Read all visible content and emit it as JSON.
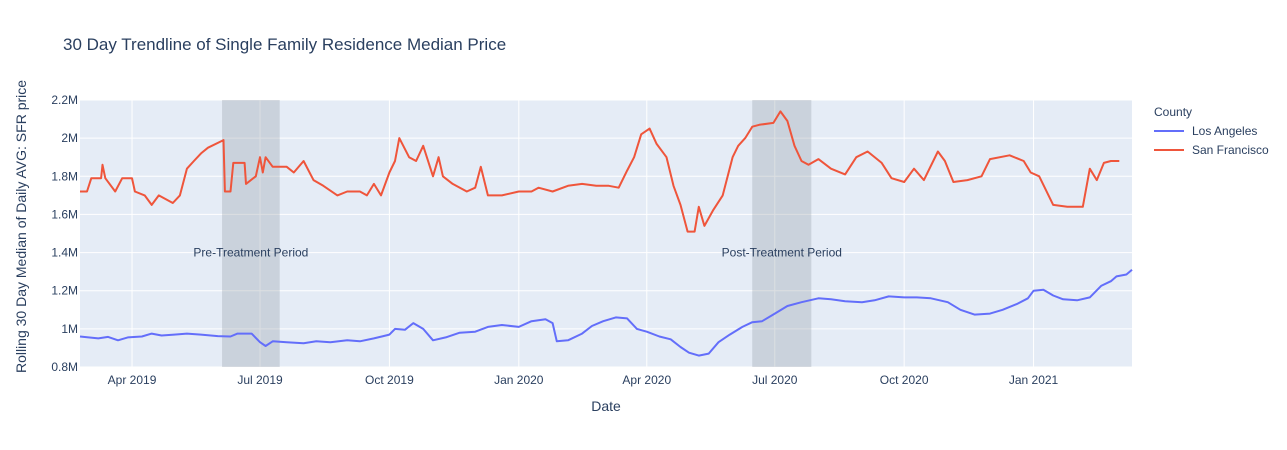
{
  "chart_data": {
    "type": "line",
    "title": "30 Day Trendline of Single Family Residence Median Price",
    "xlabel": "Date",
    "ylabel": "Rolling 30 Day Median of Daily AVG: SFR price",
    "x_range": [
      "2019-02-23",
      "2021-03-12"
    ],
    "ylim": [
      800000,
      2200000
    ],
    "x_ticks": [
      {
        "date": "2019-04-01",
        "label": "Apr 2019"
      },
      {
        "date": "2019-07-01",
        "label": "Jul 2019"
      },
      {
        "date": "2019-10-01",
        "label": "Oct 2019"
      },
      {
        "date": "2020-01-01",
        "label": "Jan 2020"
      },
      {
        "date": "2020-04-01",
        "label": "Apr 2020"
      },
      {
        "date": "2020-07-01",
        "label": "Jul 2020"
      },
      {
        "date": "2020-10-01",
        "label": "Oct 2020"
      },
      {
        "date": "2021-01-01",
        "label": "Jan 2021"
      }
    ],
    "y_ticks": [
      {
        "value": 800000,
        "label": "0.8M"
      },
      {
        "value": 1000000,
        "label": "1M"
      },
      {
        "value": 1200000,
        "label": "1.2M"
      },
      {
        "value": 1400000,
        "label": "1.4M"
      },
      {
        "value": 1600000,
        "label": "1.6M"
      },
      {
        "value": 1800000,
        "label": "1.8M"
      },
      {
        "value": 2000000,
        "label": "2M"
      },
      {
        "value": 2200000,
        "label": "2.2M"
      }
    ],
    "grid": true,
    "legend": {
      "title": "County",
      "position": "right"
    },
    "shaded_regions": [
      {
        "start": "2019-06-04",
        "end": "2019-07-15",
        "label": "Pre-Treatment Period",
        "label_y": 1400000
      },
      {
        "start": "2020-06-15",
        "end": "2020-07-27",
        "label": "Post-Treatment Period",
        "label_y": 1400000
      }
    ],
    "series": [
      {
        "name": "Los Angeles",
        "color": "#636efa",
        "points": [
          [
            "2019-02-23",
            960000
          ],
          [
            "2019-03-01",
            955000
          ],
          [
            "2019-03-08",
            950000
          ],
          [
            "2019-03-15",
            958000
          ],
          [
            "2019-03-22",
            940000
          ],
          [
            "2019-03-29",
            955000
          ],
          [
            "2019-04-08",
            960000
          ],
          [
            "2019-04-15",
            975000
          ],
          [
            "2019-04-22",
            965000
          ],
          [
            "2019-05-01",
            970000
          ],
          [
            "2019-05-10",
            975000
          ],
          [
            "2019-05-20",
            970000
          ],
          [
            "2019-06-01",
            962000
          ],
          [
            "2019-06-10",
            960000
          ],
          [
            "2019-06-15",
            975000
          ],
          [
            "2019-06-25",
            975000
          ],
          [
            "2019-07-01",
            930000
          ],
          [
            "2019-07-05",
            910000
          ],
          [
            "2019-07-10",
            935000
          ],
          [
            "2019-07-20",
            930000
          ],
          [
            "2019-08-01",
            925000
          ],
          [
            "2019-08-10",
            935000
          ],
          [
            "2019-08-20",
            930000
          ],
          [
            "2019-09-01",
            940000
          ],
          [
            "2019-09-10",
            935000
          ],
          [
            "2019-09-20",
            950000
          ],
          [
            "2019-10-01",
            970000
          ],
          [
            "2019-10-05",
            1000000
          ],
          [
            "2019-10-12",
            995000
          ],
          [
            "2019-10-18",
            1030000
          ],
          [
            "2019-10-25",
            1000000
          ],
          [
            "2019-11-01",
            940000
          ],
          [
            "2019-11-10",
            955000
          ],
          [
            "2019-11-20",
            980000
          ],
          [
            "2019-12-01",
            985000
          ],
          [
            "2019-12-10",
            1010000
          ],
          [
            "2019-12-20",
            1020000
          ],
          [
            "2020-01-01",
            1010000
          ],
          [
            "2020-01-10",
            1040000
          ],
          [
            "2020-01-20",
            1050000
          ],
          [
            "2020-01-25",
            1030000
          ],
          [
            "2020-01-28",
            935000
          ],
          [
            "2020-02-05",
            940000
          ],
          [
            "2020-02-15",
            975000
          ],
          [
            "2020-02-22",
            1015000
          ],
          [
            "2020-03-01",
            1040000
          ],
          [
            "2020-03-10",
            1060000
          ],
          [
            "2020-03-18",
            1055000
          ],
          [
            "2020-03-25",
            1000000
          ],
          [
            "2020-04-01",
            985000
          ],
          [
            "2020-04-10",
            960000
          ],
          [
            "2020-04-18",
            945000
          ],
          [
            "2020-04-25",
            905000
          ],
          [
            "2020-05-01",
            875000
          ],
          [
            "2020-05-08",
            860000
          ],
          [
            "2020-05-15",
            870000
          ],
          [
            "2020-05-22",
            930000
          ],
          [
            "2020-05-30",
            970000
          ],
          [
            "2020-06-08",
            1010000
          ],
          [
            "2020-06-15",
            1035000
          ],
          [
            "2020-06-22",
            1040000
          ],
          [
            "2020-07-01",
            1080000
          ],
          [
            "2020-07-10",
            1120000
          ],
          [
            "2020-07-20",
            1140000
          ],
          [
            "2020-08-01",
            1160000
          ],
          [
            "2020-08-10",
            1155000
          ],
          [
            "2020-08-20",
            1145000
          ],
          [
            "2020-09-01",
            1140000
          ],
          [
            "2020-09-10",
            1150000
          ],
          [
            "2020-09-20",
            1170000
          ],
          [
            "2020-10-01",
            1165000
          ],
          [
            "2020-10-10",
            1165000
          ],
          [
            "2020-10-20",
            1160000
          ],
          [
            "2020-11-01",
            1140000
          ],
          [
            "2020-11-10",
            1100000
          ],
          [
            "2020-11-20",
            1075000
          ],
          [
            "2020-12-01",
            1080000
          ],
          [
            "2020-12-10",
            1100000
          ],
          [
            "2020-12-20",
            1130000
          ],
          [
            "2020-12-28",
            1160000
          ],
          [
            "2021-01-01",
            1200000
          ],
          [
            "2021-01-08",
            1205000
          ],
          [
            "2021-01-15",
            1175000
          ],
          [
            "2021-01-22",
            1155000
          ],
          [
            "2021-02-01",
            1150000
          ],
          [
            "2021-02-10",
            1165000
          ],
          [
            "2021-02-18",
            1225000
          ],
          [
            "2021-02-25",
            1250000
          ],
          [
            "2021-03-01",
            1275000
          ],
          [
            "2021-03-08",
            1285000
          ],
          [
            "2021-03-12",
            1310000
          ]
        ]
      },
      {
        "name": "San Francisco",
        "color": "#ef553b",
        "points": [
          [
            "2019-02-23",
            1720000
          ],
          [
            "2019-02-28",
            1720000
          ],
          [
            "2019-03-03",
            1790000
          ],
          [
            "2019-03-10",
            1790000
          ],
          [
            "2019-03-11",
            1860000
          ],
          [
            "2019-03-13",
            1790000
          ],
          [
            "2019-03-20",
            1720000
          ],
          [
            "2019-03-25",
            1790000
          ],
          [
            "2019-04-01",
            1790000
          ],
          [
            "2019-04-03",
            1720000
          ],
          [
            "2019-04-10",
            1700000
          ],
          [
            "2019-04-15",
            1650000
          ],
          [
            "2019-04-20",
            1700000
          ],
          [
            "2019-04-30",
            1660000
          ],
          [
            "2019-05-05",
            1700000
          ],
          [
            "2019-05-10",
            1840000
          ],
          [
            "2019-05-15",
            1880000
          ],
          [
            "2019-05-20",
            1920000
          ],
          [
            "2019-05-25",
            1950000
          ],
          [
            "2019-06-05",
            1990000
          ],
          [
            "2019-06-06",
            1720000
          ],
          [
            "2019-06-10",
            1720000
          ],
          [
            "2019-06-12",
            1870000
          ],
          [
            "2019-06-20",
            1870000
          ],
          [
            "2019-06-21",
            1760000
          ],
          [
            "2019-06-28",
            1800000
          ],
          [
            "2019-07-01",
            1900000
          ],
          [
            "2019-07-03",
            1820000
          ],
          [
            "2019-07-05",
            1900000
          ],
          [
            "2019-07-10",
            1850000
          ],
          [
            "2019-07-20",
            1850000
          ],
          [
            "2019-07-25",
            1820000
          ],
          [
            "2019-08-01",
            1880000
          ],
          [
            "2019-08-08",
            1780000
          ],
          [
            "2019-08-15",
            1750000
          ],
          [
            "2019-08-25",
            1700000
          ],
          [
            "2019-09-01",
            1720000
          ],
          [
            "2019-09-10",
            1720000
          ],
          [
            "2019-09-15",
            1700000
          ],
          [
            "2019-09-20",
            1760000
          ],
          [
            "2019-09-25",
            1700000
          ],
          [
            "2019-10-01",
            1820000
          ],
          [
            "2019-10-05",
            1880000
          ],
          [
            "2019-10-08",
            2000000
          ],
          [
            "2019-10-15",
            1900000
          ],
          [
            "2019-10-20",
            1880000
          ],
          [
            "2019-10-25",
            1960000
          ],
          [
            "2019-11-01",
            1800000
          ],
          [
            "2019-11-05",
            1900000
          ],
          [
            "2019-11-08",
            1800000
          ],
          [
            "2019-11-15",
            1760000
          ],
          [
            "2019-11-25",
            1720000
          ],
          [
            "2019-12-01",
            1740000
          ],
          [
            "2019-12-05",
            1850000
          ],
          [
            "2019-12-10",
            1700000
          ],
          [
            "2019-12-20",
            1700000
          ],
          [
            "2020-01-01",
            1720000
          ],
          [
            "2020-01-10",
            1720000
          ],
          [
            "2020-01-15",
            1740000
          ],
          [
            "2020-01-25",
            1720000
          ],
          [
            "2020-02-05",
            1750000
          ],
          [
            "2020-02-15",
            1760000
          ],
          [
            "2020-02-25",
            1750000
          ],
          [
            "2020-03-05",
            1750000
          ],
          [
            "2020-03-12",
            1740000
          ],
          [
            "2020-03-18",
            1830000
          ],
          [
            "2020-03-23",
            1900000
          ],
          [
            "2020-03-28",
            2020000
          ],
          [
            "2020-04-03",
            2050000
          ],
          [
            "2020-04-08",
            1970000
          ],
          [
            "2020-04-15",
            1900000
          ],
          [
            "2020-04-20",
            1750000
          ],
          [
            "2020-04-25",
            1650000
          ],
          [
            "2020-04-30",
            1510000
          ],
          [
            "2020-05-05",
            1510000
          ],
          [
            "2020-05-08",
            1640000
          ],
          [
            "2020-05-12",
            1540000
          ],
          [
            "2020-05-18",
            1620000
          ],
          [
            "2020-05-25",
            1700000
          ],
          [
            "2020-06-01",
            1900000
          ],
          [
            "2020-06-05",
            1960000
          ],
          [
            "2020-06-10",
            2000000
          ],
          [
            "2020-06-15",
            2060000
          ],
          [
            "2020-06-20",
            2070000
          ],
          [
            "2020-06-30",
            2080000
          ],
          [
            "2020-07-05",
            2140000
          ],
          [
            "2020-07-10",
            2090000
          ],
          [
            "2020-07-15",
            1960000
          ],
          [
            "2020-07-20",
            1880000
          ],
          [
            "2020-07-25",
            1860000
          ],
          [
            "2020-08-01",
            1890000
          ],
          [
            "2020-08-10",
            1840000
          ],
          [
            "2020-08-20",
            1810000
          ],
          [
            "2020-08-28",
            1900000
          ],
          [
            "2020-09-05",
            1930000
          ],
          [
            "2020-09-15",
            1870000
          ],
          [
            "2020-09-22",
            1790000
          ],
          [
            "2020-10-01",
            1770000
          ],
          [
            "2020-10-08",
            1840000
          ],
          [
            "2020-10-15",
            1780000
          ],
          [
            "2020-10-25",
            1930000
          ],
          [
            "2020-10-30",
            1880000
          ],
          [
            "2020-11-05",
            1770000
          ],
          [
            "2020-11-15",
            1780000
          ],
          [
            "2020-11-25",
            1800000
          ],
          [
            "2020-12-01",
            1890000
          ],
          [
            "2020-12-15",
            1910000
          ],
          [
            "2020-12-25",
            1880000
          ],
          [
            "2020-12-30",
            1820000
          ],
          [
            "2021-01-05",
            1800000
          ],
          [
            "2021-01-15",
            1650000
          ],
          [
            "2021-01-25",
            1640000
          ],
          [
            "2021-02-05",
            1640000
          ],
          [
            "2021-02-10",
            1840000
          ],
          [
            "2021-02-15",
            1780000
          ],
          [
            "2021-02-20",
            1870000
          ],
          [
            "2021-02-25",
            1880000
          ],
          [
            "2021-03-03",
            1880000
          ]
        ]
      }
    ]
  }
}
